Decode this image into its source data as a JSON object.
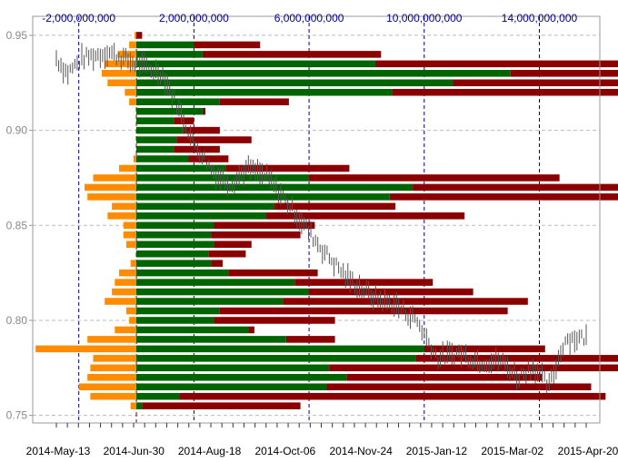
{
  "chart_data": {
    "type": "bar",
    "title": "",
    "xlabel": "",
    "ylabel": "",
    "grid": true,
    "y_ticks": [
      "0.95",
      "0.90",
      "0.85",
      "0.80",
      "0.75"
    ],
    "y_tick_values": [
      0.95,
      0.9,
      0.85,
      0.8,
      0.75
    ],
    "y_range": [
      0.746,
      0.96
    ],
    "time_ticks": [
      "2014-May-13",
      "2014-Jun-30",
      "2014-Aug-18",
      "2014-Oct-06",
      "2014-Nov-24",
      "2015-Jan-12",
      "2015-Mar-02",
      "2015-Apr-20"
    ],
    "volume_ticks": [
      "-2,000,000,000",
      "2,000,000,000",
      "6,000,000,000",
      "10,000,000,000",
      "14,000,000,000"
    ],
    "volume_tick_values": [
      -2000000000,
      2000000000,
      6000000000,
      10000000000,
      14000000000
    ],
    "volume_range": [
      -3600000000,
      16100000000
    ],
    "colors": {
      "negative_volume": "#ff8c00",
      "green_volume": "#006400",
      "red_volume": "#8b0000",
      "price_line": "#555555",
      "grid": "#bbbbbb",
      "volume_grid": "#00008b"
    },
    "series": [
      {
        "name": "",
        "levels": [
          0.95,
          0.945,
          0.94,
          0.935,
          0.93,
          0.925,
          0.92,
          0.915,
          0.91,
          0.905,
          0.9,
          0.895,
          0.89,
          0.885,
          0.88,
          0.875,
          0.87,
          0.865,
          0.86,
          0.855,
          0.85,
          0.845,
          0.84,
          0.835,
          0.83,
          0.825,
          0.82,
          0.815,
          0.81,
          0.805,
          0.8,
          0.795,
          0.79,
          0.785,
          0.78,
          0.775,
          0.77,
          0.765,
          0.76,
          0.755
        ],
        "negative": [
          -60000000,
          -250000000,
          -650000000,
          -1100000000,
          -1200000000,
          -1000000000,
          -400000000,
          -250000000,
          0,
          0,
          0,
          0,
          0,
          -100000000,
          -600000000,
          -1500000000,
          -1800000000,
          -1700000000,
          -850000000,
          -1000000000,
          -450000000,
          -450000000,
          -350000000,
          0,
          -200000000,
          -600000000,
          -750000000,
          -850000000,
          -1100000000,
          -350000000,
          -250000000,
          -750000000,
          -1700000000,
          -3500000000,
          -1500000000,
          -1600000000,
          -1700000000,
          -2000000000,
          -1600000000,
          -200000000
        ],
        "green": [
          0,
          2000000000,
          2300000000,
          8300000000,
          13000000000,
          11000000000,
          8900000000,
          2900000000,
          2300000000,
          1300000000,
          1600000000,
          1400000000,
          1300000000,
          1800000000,
          3100000000,
          6000000000,
          9600000000,
          8800000000,
          4800000000,
          4500000000,
          2700000000,
          2600000000,
          2700000000,
          2500000000,
          2600000000,
          3200000000,
          5500000000,
          6000000000,
          5100000000,
          2900000000,
          2700000000,
          3900000000,
          5200000000,
          10000000000,
          9700000000,
          6700000000,
          7300000000,
          6600000000,
          1500000000,
          200000000
        ],
        "red": [
          200000000,
          4300000000,
          8500000000,
          18900000000,
          27800000000,
          24300000000,
          17500000000,
          5300000000,
          2400000000,
          2000000000,
          2900000000,
          4000000000,
          2900000000,
          3200000000,
          7400000000,
          14700000000,
          22900000000,
          21100000000,
          9000000000,
          11400000000,
          6200000000,
          5700000000,
          4000000000,
          3800000000,
          3000000000,
          6300000000,
          10300000000,
          11700000000,
          13600000000,
          12900000000,
          6900000000,
          4100000000,
          6900000000,
          14200000000,
          25100000000,
          21000000000,
          14100000000,
          15800000000,
          16300000000,
          5700000000
        ]
      }
    ]
  }
}
